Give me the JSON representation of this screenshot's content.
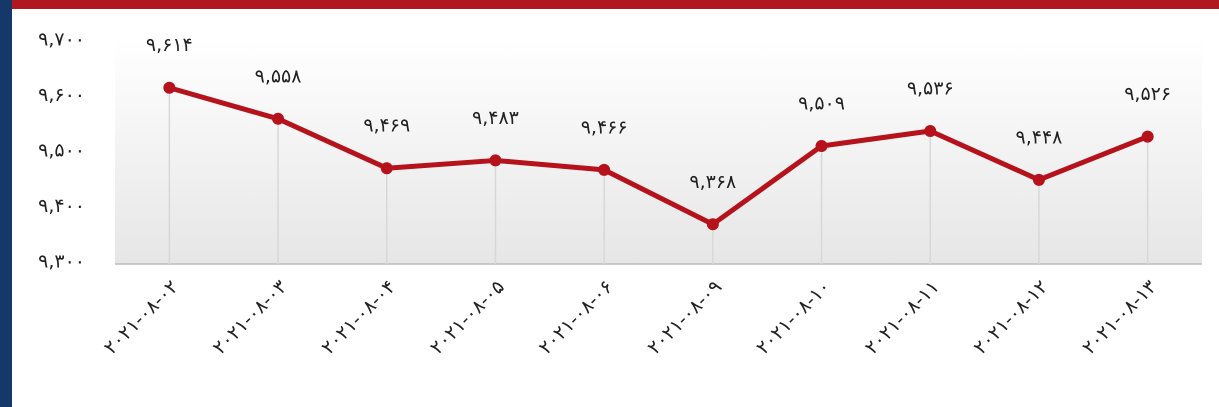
{
  "chart_data": {
    "type": "line",
    "categories": [
      "۲۰۲۱-۰۸-۰۲",
      "۲۰۲۱-۰۸-۰۳",
      "۲۰۲۱-۰۸-۰۴",
      "۲۰۲۱-۰۸-۰۵",
      "۲۰۲۱-۰۸-۰۶",
      "۲۰۲۱-۰۸-۰۹",
      "۲۰۲۱-۰۸-۱۰",
      "۲۰۲۱-۰۸-۱۱",
      "۲۰۲۱-۰۸-۱۲",
      "۲۰۲۱-۰۸-۱۳"
    ],
    "values": [
      9614,
      9558,
      9469,
      9483,
      9466,
      9368,
      9509,
      9536,
      9448,
      9526
    ],
    "value_labels": [
      "۹,۶۱۴",
      "۹,۵۵۸",
      "۹,۴۶۹",
      "۹,۴۸۳",
      "۹,۴۶۶",
      "۹,۳۶۸",
      "۹,۵۰۹",
      "۹,۵۳۶",
      "۹,۴۴۸",
      "۹,۵۲۶"
    ],
    "color": "#b5121b",
    "ylim": [
      9300,
      9700
    ],
    "yticks": [
      {
        "value": 9300,
        "label": "۹,۳۰۰"
      },
      {
        "value": 9400,
        "label": "۹,۴۰۰"
      },
      {
        "value": 9500,
        "label": "۹,۵۰۰"
      },
      {
        "value": 9600,
        "label": "۹,۶۰۰"
      },
      {
        "value": 9700,
        "label": "۹,۷۰۰"
      }
    ]
  }
}
